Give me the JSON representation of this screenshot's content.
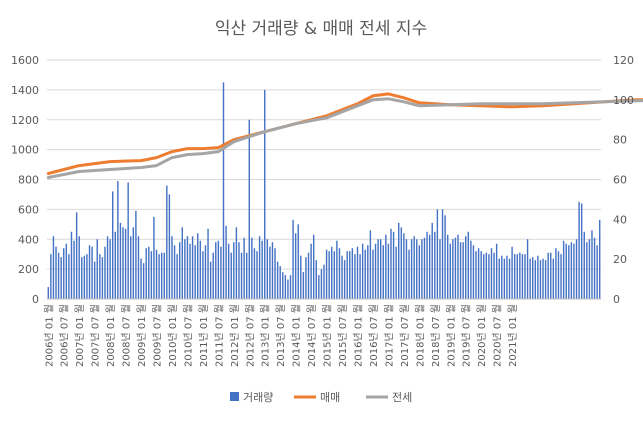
{
  "chart_data": {
    "type": "bar+line",
    "title": "익산 거래량 & 매매 전세 지수",
    "y_left": {
      "min": 0,
      "max": 1600,
      "ticks": [
        0,
        200,
        400,
        600,
        800,
        1000,
        1200,
        1400,
        1600
      ]
    },
    "y_right": {
      "min": 0,
      "max": 120,
      "ticks": [
        0,
        20,
        40,
        60,
        80,
        100,
        120
      ]
    },
    "grid": true,
    "legend_position": "bottom",
    "x_tick_labels": [
      "2006년 01 월",
      "2006년 07 월",
      "2007년 01 월",
      "2007년 07 월",
      "2008년 01 월",
      "2008년 07 월",
      "2009년 01 월",
      "2009년 07 월",
      "2010년 01 월",
      "2010년 07 월",
      "2011년 01 월",
      "2011년 07 월",
      "2012년 01 월",
      "2012년 07 월",
      "2013년 01 월",
      "2013년 07 월",
      "2014년 01 월",
      "2014년 07 월",
      "2015년 01 월",
      "2015년 07 월",
      "2016년 01 월",
      "2016년 07 월",
      "2017년 01 월",
      "2017년 07 월",
      "2018년 01 월",
      "2018년 07 월",
      "2019년 01 월",
      "2019년 07 월",
      "2020년 01 월",
      "2020년 07 월",
      "2021년 01 월"
    ],
    "series": [
      {
        "name": "거래량",
        "kind": "bar",
        "axis": "left",
        "color": "#4472C4",
        "values": [
          80,
          300,
          420,
          350,
          310,
          280,
          340,
          370,
          300,
          450,
          390,
          580,
          420,
          280,
          290,
          300,
          360,
          350,
          250,
          400,
          300,
          280,
          350,
          420,
          400,
          720,
          450,
          790,
          510,
          480,
          470,
          780,
          420,
          480,
          590,
          420,
          270,
          240,
          340,
          350,
          320,
          550,
          330,
          300,
          310,
          310,
          760,
          700,
          420,
          360,
          300,
          380,
          480,
          400,
          420,
          370,
          420,
          360,
          440,
          390,
          320,
          360,
          470,
          250,
          310,
          380,
          390,
          350,
          1450,
          490,
          370,
          310,
          380,
          480,
          380,
          310,
          410,
          310,
          1200,
          410,
          340,
          320,
          420,
          390,
          1400,
          400,
          350,
          380,
          340,
          250,
          220,
          180,
          160,
          130,
          160,
          530,
          440,
          500,
          290,
          180,
          280,
          310,
          370,
          430,
          260,
          160,
          200,
          230,
          330,
          320,
          350,
          320,
          390,
          340,
          290,
          260,
          320,
          320,
          340,
          300,
          350,
          300,
          370,
          330,
          360,
          460,
          330,
          370,
          400,
          400,
          360,
          430,
          370,
          470,
          450,
          350,
          510,
          480,
          440,
          400,
          330,
          400,
          420,
          400,
          360,
          400,
          410,
          450,
          430,
          510,
          450,
          600,
          400,
          600,
          560,
          430,
          370,
          400,
          410,
          430,
          380,
          380,
          420,
          450,
          390,
          360,
          320,
          340,
          320,
          300,
          310,
          300,
          340,
          310,
          370,
          270,
          290,
          270,
          290,
          270,
          350,
          300,
          300,
          310,
          300,
          300,
          400,
          270,
          280,
          260,
          290,
          260,
          270,
          260,
          310,
          310,
          270,
          340,
          320,
          300,
          390,
          370,
          360,
          380,
          370,
          400,
          650,
          640,
          450,
          380,
          400,
          460,
          410,
          360,
          530
        ]
      },
      {
        "name": "매매",
        "kind": "line",
        "axis": "right",
        "color": "#ED7D31",
        "points": [
          [
            0,
            63
          ],
          [
            12,
            67
          ],
          [
            24,
            69
          ],
          [
            36,
            69.5
          ],
          [
            42,
            71
          ],
          [
            48,
            74
          ],
          [
            54,
            75.5
          ],
          [
            60,
            75.5
          ],
          [
            66,
            76
          ],
          [
            72,
            80
          ],
          [
            84,
            84
          ],
          [
            96,
            88
          ],
          [
            108,
            92
          ],
          [
            120,
            98
          ],
          [
            126,
            102
          ],
          [
            132,
            103
          ],
          [
            138,
            101
          ],
          [
            144,
            98.5
          ],
          [
            156,
            97.5
          ],
          [
            168,
            97
          ],
          [
            180,
            96.5
          ],
          [
            192,
            97
          ],
          [
            204,
            98
          ],
          [
            216,
            99
          ],
          [
            228,
            100
          ],
          [
            240,
            100
          ],
          [
            252,
            99.5
          ],
          [
            264,
            98.5
          ],
          [
            276,
            98
          ],
          [
            282,
            99
          ]
        ]
      },
      {
        "name": "전세",
        "kind": "line",
        "axis": "right",
        "color": "#A5A5A5",
        "points": [
          [
            0,
            61
          ],
          [
            12,
            64
          ],
          [
            24,
            65
          ],
          [
            36,
            66
          ],
          [
            42,
            67
          ],
          [
            48,
            71
          ],
          [
            54,
            72.5
          ],
          [
            60,
            73
          ],
          [
            66,
            74
          ],
          [
            72,
            79
          ],
          [
            84,
            84
          ],
          [
            96,
            88
          ],
          [
            108,
            91
          ],
          [
            120,
            97
          ],
          [
            126,
            100
          ],
          [
            132,
            100.5
          ],
          [
            138,
            99
          ],
          [
            144,
            97
          ],
          [
            156,
            97.5
          ],
          [
            168,
            98
          ],
          [
            180,
            98
          ],
          [
            192,
            98
          ],
          [
            204,
            98.5
          ],
          [
            216,
            99
          ],
          [
            228,
            99.5
          ],
          [
            240,
            100
          ],
          [
            252,
            100
          ],
          [
            264,
            99.5
          ],
          [
            276,
            99.5
          ],
          [
            282,
            100
          ]
        ]
      }
    ]
  }
}
